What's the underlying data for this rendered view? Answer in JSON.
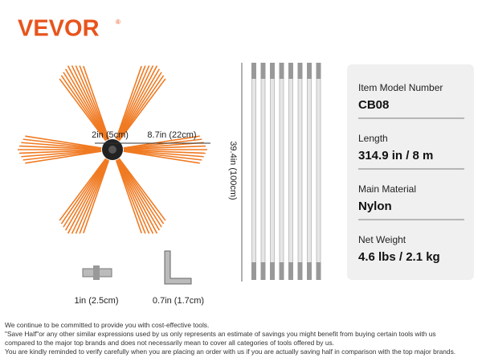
{
  "brand": {
    "name": "VEVOR",
    "mark": "®"
  },
  "dimensions": {
    "hub": "2in (5cm)",
    "bristle": "8.7in (22cm)",
    "rod": "39.4in (100cm)",
    "adapter": "1in (2.5cm)",
    "wrench": "0.7in (1.7cm)"
  },
  "specs": [
    {
      "label": "Item Model Number",
      "value": "CB08"
    },
    {
      "label": "Length",
      "value": "314.9 in / 8 m"
    },
    {
      "label": "Main Material",
      "value": "Nylon"
    },
    {
      "label": "Net Weight",
      "value": "4.6 lbs / 2.1 kg"
    }
  ],
  "disclaimer": [
    "We continue to be committed to provide you with cost-effective tools.",
    "\"Save Half\"or any other similar expressions used by us only represents an estimate of savings you might benefit from buying certain tools with us",
    "compared to the major top brands and does not necessarily mean to cover all categories of tools offered by us.",
    "You are kindly reminded to verify carefully when you are placing an order with us if you are actually saving half in comparison with the top major brands."
  ]
}
